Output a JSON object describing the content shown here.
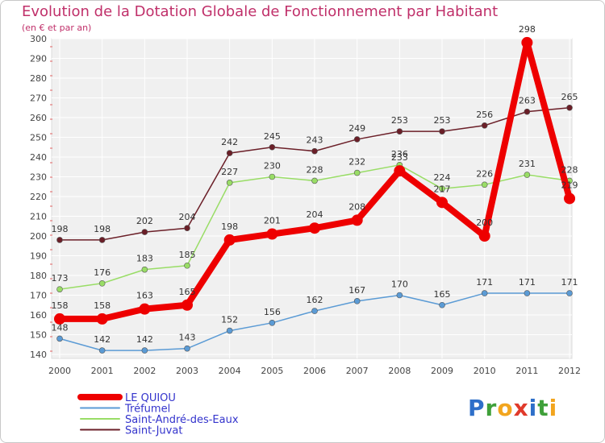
{
  "chart_data": {
    "type": "line",
    "title": "Evolution de la Dotation Globale de Fonctionnement par Habitant",
    "subtitle": "(en € et par an)",
    "x": [
      "2000",
      "2001",
      "2002",
      "2003",
      "2004",
      "2005",
      "2006",
      "2007",
      "2008",
      "2009",
      "2010",
      "2011",
      "2012"
    ],
    "ylim": [
      140,
      300
    ],
    "yticks": [
      140,
      150,
      160,
      170,
      180,
      190,
      200,
      210,
      220,
      230,
      240,
      250,
      260,
      270,
      280,
      290,
      300
    ],
    "grid": true,
    "legend_position": "bottom-left",
    "series": [
      {
        "name": "LE QUIOU",
        "color": "#ee0000",
        "values": [
          158,
          158,
          163,
          165,
          198,
          201,
          204,
          208,
          233,
          217,
          200,
          298,
          219
        ],
        "labels": [
          "158",
          "158",
          "163",
          "165",
          "198",
          "201",
          "204",
          "208",
          "233",
          "217",
          "200",
          "298",
          "219"
        ]
      },
      {
        "name": "Tréfumel",
        "color": "#5b9bd5",
        "values": [
          148,
          142,
          142,
          143,
          152,
          156,
          162,
          167,
          170,
          165,
          171,
          171,
          171
        ],
        "labels": [
          "148",
          "142",
          "142",
          "143",
          "152",
          "156",
          "162",
          "167",
          "170",
          "165",
          "171",
          "171",
          "171"
        ]
      },
      {
        "name": "Saint-André-des-Eaux",
        "color": "#99dd66",
        "values": [
          173,
          176,
          183,
          185,
          227,
          230,
          228,
          232,
          236,
          224,
          226,
          231,
          228
        ],
        "labels": [
          "173",
          "176",
          "183",
          "185",
          "227",
          "230",
          "228",
          "232",
          "236",
          "224",
          "226",
          "231",
          "228"
        ]
      },
      {
        "name": "Saint-Juvat",
        "color": "#6b1f28",
        "values": [
          198,
          198,
          202,
          204,
          242,
          245,
          243,
          249,
          253,
          253,
          256,
          263,
          265
        ],
        "labels": [
          "198",
          "198",
          "202",
          "204",
          "242",
          "245",
          "243",
          "249",
          "253",
          "253",
          "256",
          "263",
          "265"
        ]
      }
    ]
  },
  "logo": {
    "letters": [
      "P",
      "r",
      "o",
      "x",
      "i",
      "t",
      "i"
    ]
  }
}
